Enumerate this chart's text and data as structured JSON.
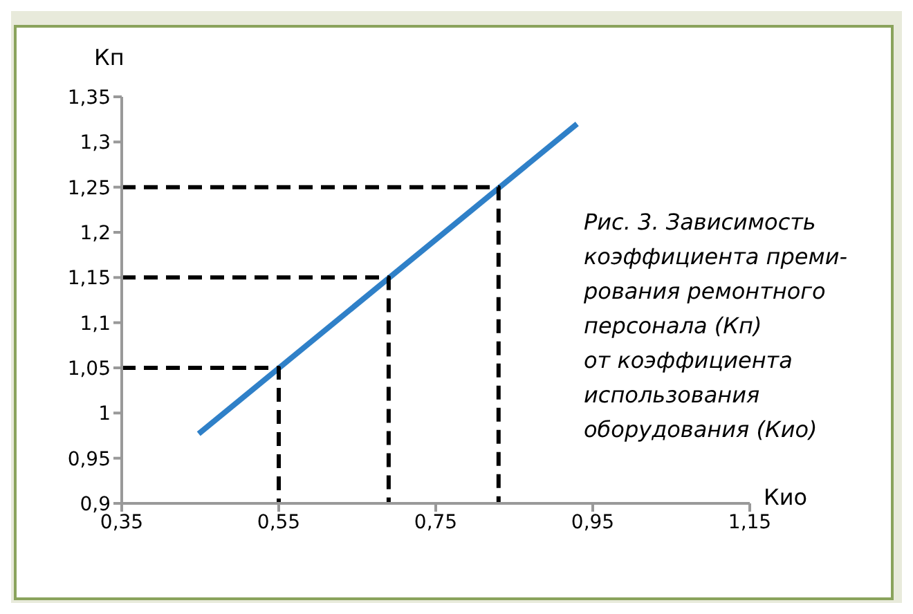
{
  "chart_data": {
    "type": "line",
    "xlabel": "Кио",
    "ylabel": "Кп",
    "annotations": [
      "Рис. 3. Зависимость коэффициента преми-рования ремонтного персонала (Кп)\nот коэффициента использования оборудования (Кио)"
    ],
    "series": [
      {
        "x": [
          0.448,
          0.93
        ],
        "values": [
          0.977,
          1.32
        ],
        "color": "#2f80c8",
        "line_style": "solid"
      },
      {
        "type": "line",
        "x": [
          0.35,
          0.55,
          0.55
        ],
        "values": [
          1.05,
          1.05,
          0.9
        ],
        "color": "#000000",
        "line_style": "dashed"
      },
      {
        "type": "line",
        "x": [
          0.35,
          0.69,
          0.69
        ],
        "values": [
          1.15,
          1.15,
          0.9
        ],
        "color": "#000000",
        "line_style": "dashed"
      },
      {
        "type": "line",
        "x": [
          0.35,
          0.83,
          0.83
        ],
        "values": [
          1.25,
          1.25,
          0.9
        ],
        "color": "#000000",
        "line_style": "dashed"
      }
    ],
    "xlim": [
      0.35,
      1.15
    ],
    "xticks": [
      {
        "value": 0.35,
        "label": "0,35"
      },
      {
        "value": 0.55,
        "label": "0,55"
      },
      {
        "value": 0.75,
        "label": "0,75"
      },
      {
        "value": 0.95,
        "label": "0,95"
      },
      {
        "value": 1.15,
        "label": "1,15"
      }
    ],
    "ylim": [
      0.9,
      1.35
    ],
    "yticks": [
      {
        "value": 0.9,
        "label": "0,9"
      },
      {
        "value": 0.95,
        "label": "0,95"
      },
      {
        "value": 1,
        "label": "1"
      },
      {
        "value": 1.05,
        "label": "1,05"
      },
      {
        "value": 1.1,
        "label": "1,1"
      },
      {
        "value": 1.15,
        "label": "1,15"
      },
      {
        "value": 1.2,
        "label": "1,2"
      },
      {
        "value": 1.25,
        "label": "1,25"
      },
      {
        "value": 1.3,
        "label": "1,3"
      },
      {
        "value": 1.35,
        "label": "1,35"
      }
    ],
    "grid": false,
    "marker": "none"
  }
}
